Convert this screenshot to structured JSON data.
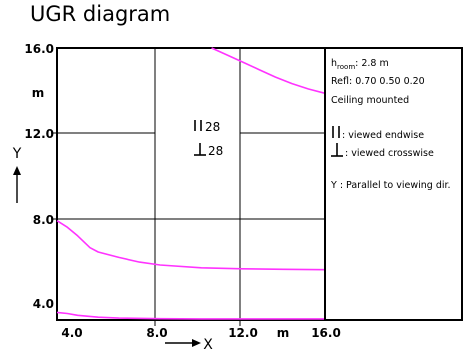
{
  "title": "UGR diagram",
  "chart_data": {
    "type": "line",
    "x_ticks": [
      "4.0",
      "8.0",
      "12.0",
      "16.0"
    ],
    "y_ticks": [
      "4.0",
      "8.0",
      "12.0",
      "16.0"
    ],
    "x_unit": "m",
    "y_unit": "m",
    "x_axis_label": "X",
    "y_axis_label": "Y",
    "xlim": [
      3.0,
      16.0
    ],
    "ylim": [
      3.4,
      16.0
    ],
    "grid": true,
    "curve_color": "#ff33ff",
    "center_labels": {
      "endwise_value": "28",
      "crosswise_value": "28"
    },
    "series": [
      {
        "x": [
          10.5,
          11.2,
          12.0,
          12.8,
          13.6,
          14.4,
          15.2,
          16.0
        ],
        "y": [
          16.0,
          15.7,
          15.35,
          15.0,
          14.65,
          14.35,
          14.1,
          13.9
        ]
      },
      {
        "x": [
          3.0,
          3.5,
          4.0,
          4.6,
          5.0,
          6.0,
          7.0,
          8.0,
          10.0,
          12.0,
          14.0,
          16.0
        ],
        "y": [
          8.0,
          7.7,
          7.3,
          6.75,
          6.55,
          6.3,
          6.08,
          5.95,
          5.82,
          5.77,
          5.75,
          5.73
        ]
      },
      {
        "x": [
          3.0,
          3.5,
          4.0,
          5.0,
          6.0,
          8.0,
          10.0,
          12.0,
          14.0,
          16.0
        ],
        "y": [
          3.75,
          3.7,
          3.62,
          3.53,
          3.49,
          3.46,
          3.45,
          3.45,
          3.45,
          3.45
        ]
      }
    ]
  },
  "info_panel": {
    "h_room_main": "h",
    "h_room_sub": "room",
    "h_room_value": ": 2.8 m",
    "refl": "Refl: 0.70 0.50 0.20",
    "mounting": "Ceiling mounted",
    "endwise_text": ": viewed endwise",
    "crosswise_text": ": viewed crosswise",
    "y_note": "Y  : Parallel to viewing dir."
  }
}
